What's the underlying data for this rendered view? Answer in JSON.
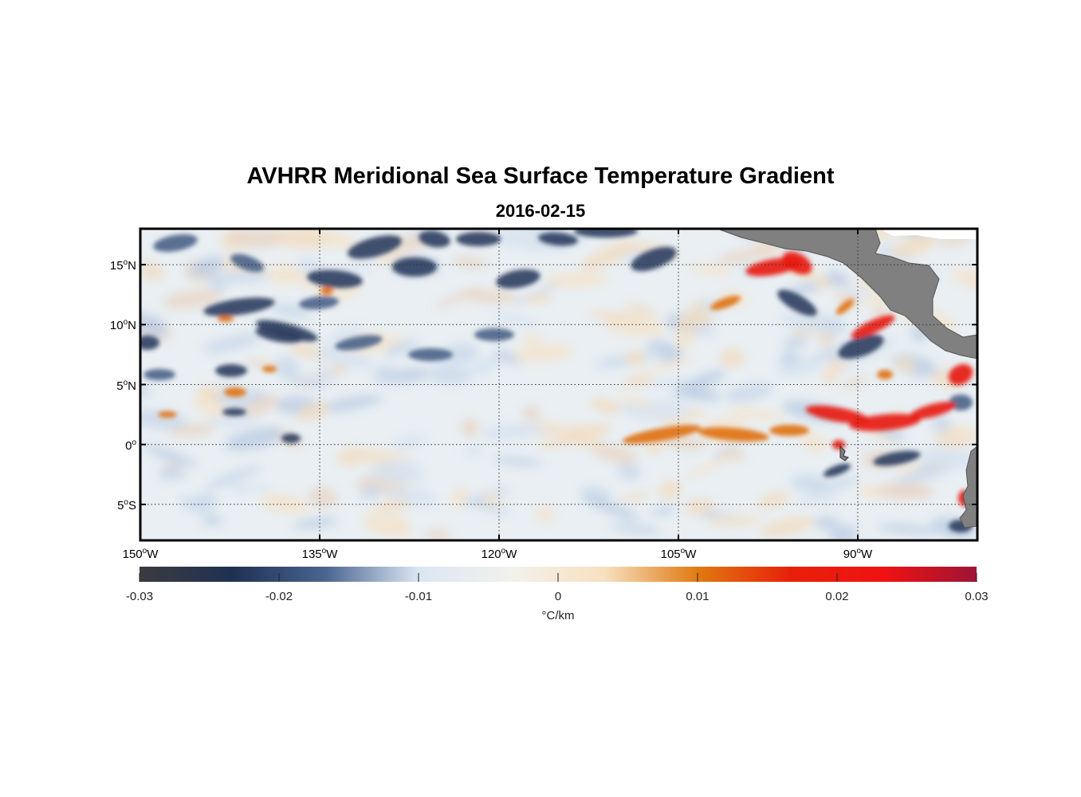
{
  "figure": {
    "title": "AVHRR Meridional Sea Surface Temperature Gradient",
    "subtitle": "2016-02-15"
  },
  "map": {
    "lon_range": [
      -150,
      -80
    ],
    "lat_range": [
      -8,
      18
    ],
    "lat_ticks": [
      {
        "value": 15,
        "num": "15",
        "deg": "o",
        "hemi": "N"
      },
      {
        "value": 10,
        "num": "10",
        "deg": "o",
        "hemi": "N"
      },
      {
        "value": 5,
        "num": "5",
        "deg": "o",
        "hemi": "N"
      },
      {
        "value": 0,
        "num": "0",
        "deg": "o",
        "hemi": ""
      },
      {
        "value": -5,
        "num": "5",
        "deg": "o",
        "hemi": "S"
      }
    ],
    "lon_ticks": [
      {
        "value": -150,
        "num": "150",
        "deg": "o",
        "hemi": "W"
      },
      {
        "value": -135,
        "num": "135",
        "deg": "o",
        "hemi": "W"
      },
      {
        "value": -120,
        "num": "120",
        "deg": "o",
        "hemi": "W"
      },
      {
        "value": -105,
        "num": "105",
        "deg": "o",
        "hemi": "W"
      },
      {
        "value": -90,
        "num": "90",
        "deg": "o",
        "hemi": "W"
      }
    ],
    "land_color": "#808080",
    "grid": true
  },
  "colorbar": {
    "ticks": [
      "-0.03",
      "-0.02",
      "-0.01",
      "0",
      "0.01",
      "0.02",
      "0.03"
    ],
    "unit": "°C/km",
    "range": [
      -0.03,
      0.03
    ],
    "colors": [
      "#3b3b3f",
      "#1f3153",
      "#4a6590",
      "#dbe6f3",
      "#f2f1ec",
      "#f7e0c0",
      "#e07a10",
      "#e8200a",
      "#f01212",
      "#9e1435"
    ]
  }
}
